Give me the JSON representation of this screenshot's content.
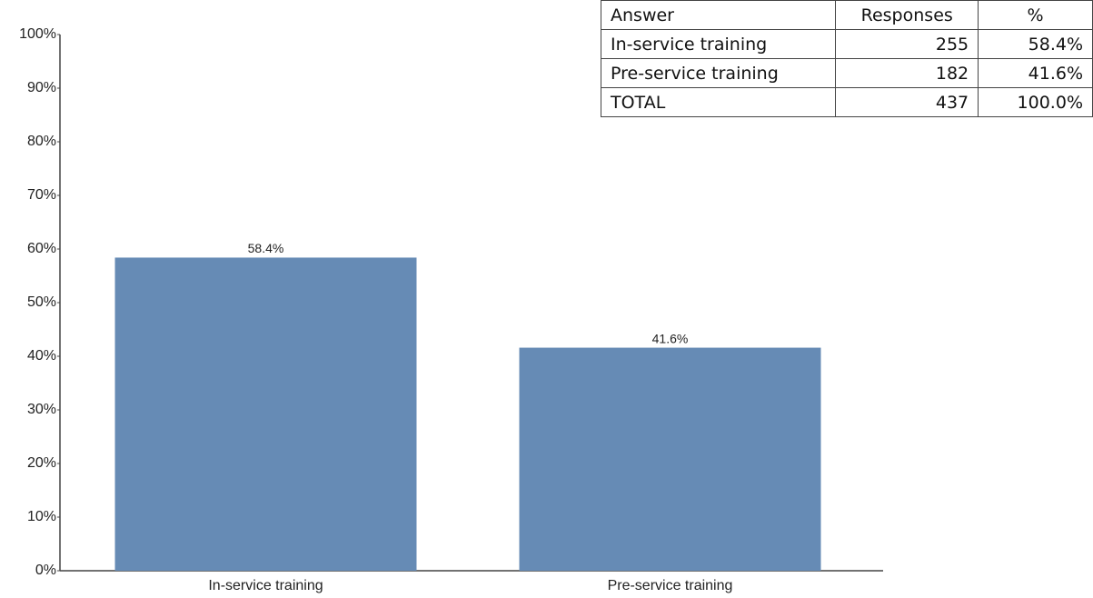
{
  "chart_data": {
    "type": "bar",
    "categories": [
      "In-service training",
      "Pre-service training"
    ],
    "values": [
      58.4,
      41.6
    ],
    "value_labels": [
      "58.4%",
      "41.6%"
    ],
    "color": "#668bb5",
    "ylim": [
      0,
      100
    ],
    "yticks": [
      {
        "value": 0,
        "label": "0%"
      },
      {
        "value": 10,
        "label": "10%"
      },
      {
        "value": 20,
        "label": "20%"
      },
      {
        "value": 30,
        "label": "30%"
      },
      {
        "value": 40,
        "label": "40%"
      },
      {
        "value": 50,
        "label": "50%"
      },
      {
        "value": 60,
        "label": "60%"
      },
      {
        "value": 70,
        "label": "70%"
      },
      {
        "value": 80,
        "label": "80%"
      },
      {
        "value": 90,
        "label": "90%"
      },
      {
        "value": 100,
        "label": "100%"
      }
    ],
    "grid": false
  },
  "table": {
    "header": [
      "Answer",
      "Responses",
      "%"
    ],
    "rows": [
      [
        "In-service training",
        255,
        "58.4%"
      ],
      [
        "Pre-service training",
        182,
        "41.6%"
      ],
      [
        "TOTAL",
        437,
        "100.0%"
      ]
    ]
  }
}
